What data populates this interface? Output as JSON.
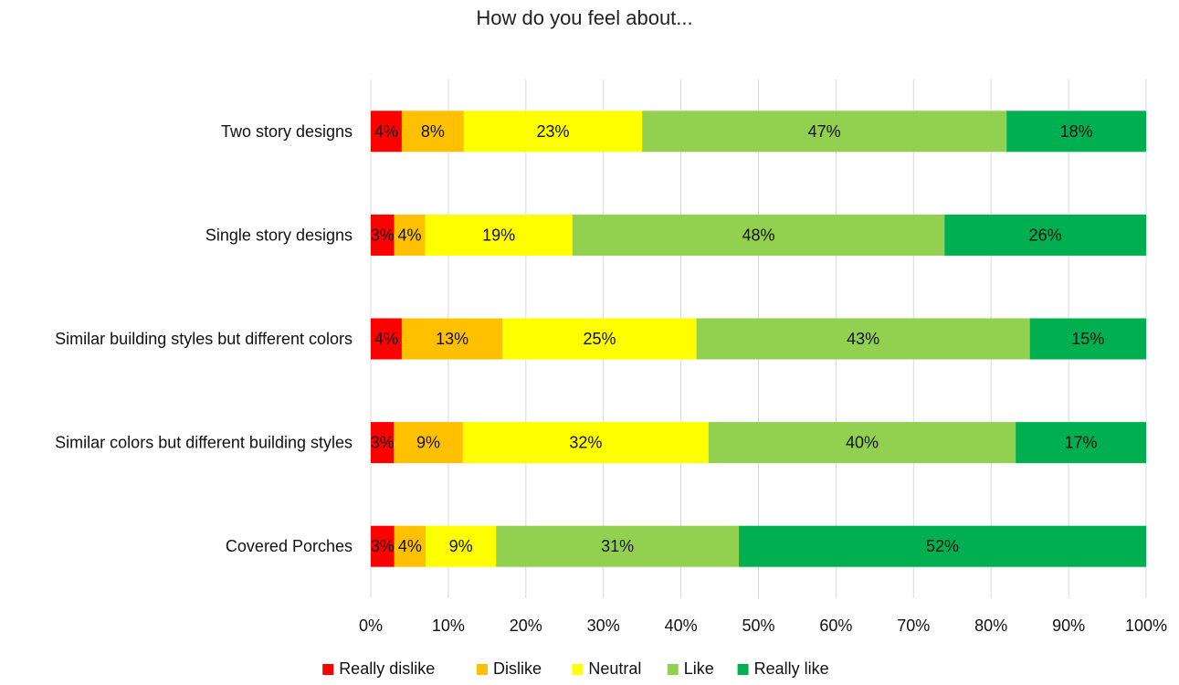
{
  "chart_data": {
    "type": "bar",
    "orientation": "horizontal",
    "stacked": "percent",
    "title": "How do you feel about...",
    "categories": [
      "Two story designs",
      "Single story designs",
      "Similar building styles but different colors",
      "Similar colors but different building styles",
      "Covered Porches"
    ],
    "series": [
      {
        "name": "Really dislike",
        "color": "#ff0000",
        "values": [
          4,
          3,
          4,
          3,
          3
        ],
        "labels": [
          "4%",
          "3%",
          "4%",
          "3%",
          "3%"
        ]
      },
      {
        "name": "Dislike",
        "color": "#ffc000",
        "values": [
          8,
          4,
          13,
          9,
          4
        ],
        "labels": [
          "8%",
          "4%",
          "13%",
          "9%",
          "4%"
        ]
      },
      {
        "name": "Neutral",
        "color": "#ffff00",
        "values": [
          23,
          19,
          25,
          32,
          9
        ],
        "labels": [
          "23%",
          "19%",
          "25%",
          "32%",
          "9%"
        ]
      },
      {
        "name": "Like",
        "color": "#92d050",
        "values": [
          47,
          48,
          43,
          40,
          31
        ],
        "labels": [
          "47%",
          "48%",
          "43%",
          "40%",
          "31%"
        ]
      },
      {
        "name": "Really like",
        "color": "#00b050",
        "values": [
          18,
          26,
          15,
          17,
          52
        ],
        "labels": [
          "18%",
          "26%",
          "15%",
          "17%",
          "52%"
        ]
      }
    ],
    "xticks": [
      "0%",
      "10%",
      "20%",
      "30%",
      "40%",
      "50%",
      "60%",
      "70%",
      "80%",
      "90%",
      "100%"
    ],
    "xlim": [
      0,
      100
    ],
    "grid": "vertical",
    "legend": "bottom"
  }
}
